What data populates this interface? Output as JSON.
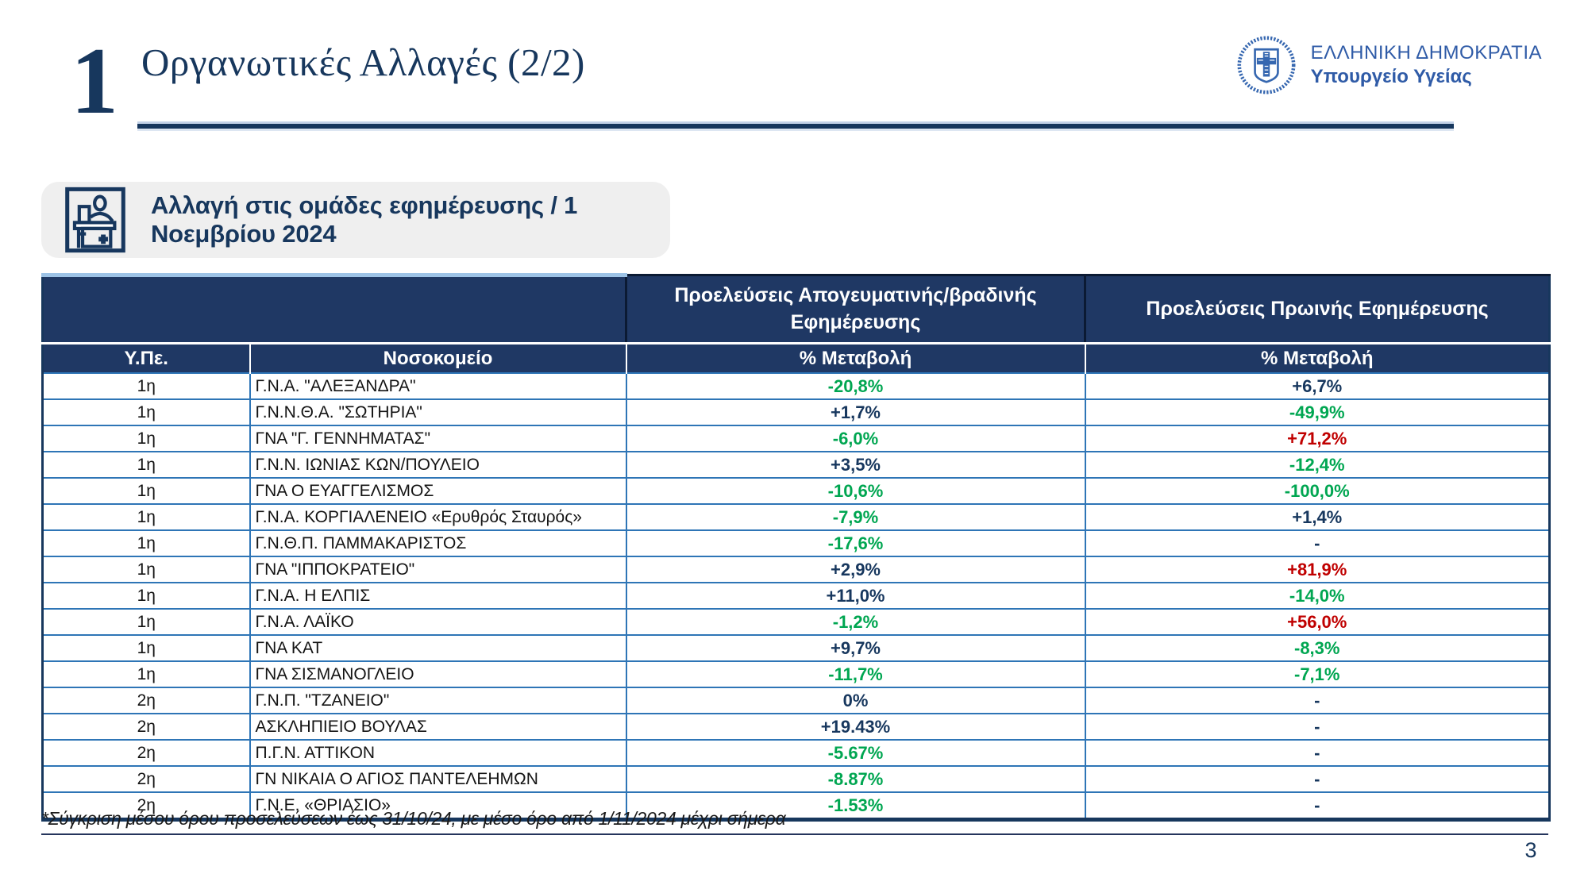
{
  "slide": {
    "section_number": "1",
    "title": "Οργανωτικές Αλλαγές (2/2)",
    "page_number": "3"
  },
  "logo": {
    "emblem": "greek-coat-of-arms",
    "line1": "ΕΛΛΗΝΙΚΗ ΔΗΜΟΚΡΑΤΙΑ",
    "line2": "Υπουργείο Υγείας"
  },
  "callout": {
    "icon": "hospital-reception-icon",
    "text": "Αλλαγή στις ομάδες εφημέρευσης / 1 Νοεμβρίου 2024"
  },
  "table": {
    "header_groups": {
      "afternoon": "Προελεύσεις  Απογευματινής/βραδινής Εφημέρευσης",
      "morning": "Προελεύσεις  Πρωινής Εφημέρευσης"
    },
    "columns": {
      "ype": "Υ.Πε.",
      "hospital": "Νοσοκομείο",
      "afternoon_change": "% Μεταβολή",
      "morning_change": "% Μεταβολή"
    },
    "rows": [
      {
        "ype": "1η",
        "hospital": "Γ.Ν.Α. \"ΑΛΕΞΑΝΔΡΑ\"",
        "afternoon": {
          "value": "-20,8%",
          "color": "green"
        },
        "morning": {
          "value": "+6,7%",
          "color": "navy"
        }
      },
      {
        "ype": "1η",
        "hospital": "Γ.Ν.Ν.Θ.Α. \"ΣΩΤΗΡΙΑ\"",
        "afternoon": {
          "value": "+1,7%",
          "color": "navy"
        },
        "morning": {
          "value": "-49,9%",
          "color": "green"
        }
      },
      {
        "ype": "1η",
        "hospital": "ΓΝΑ \"Γ. ΓΕΝΝΗΜΑΤΑΣ\"",
        "afternoon": {
          "value": "-6,0%",
          "color": "green"
        },
        "morning": {
          "value": "+71,2%",
          "color": "red"
        }
      },
      {
        "ype": "1η",
        "hospital": "Γ.Ν.Ν. ΙΩΝΙΑΣ ΚΩΝ/ΠΟΥΛΕΙΟ",
        "afternoon": {
          "value": "+3,5%",
          "color": "navy"
        },
        "morning": {
          "value": "-12,4%",
          "color": "green"
        }
      },
      {
        "ype": "1η",
        "hospital": "ΓΝΑ Ο ΕΥΑΓΓΕΛΙΣΜΟΣ",
        "afternoon": {
          "value": "-10,6%",
          "color": "green"
        },
        "morning": {
          "value": "-100,0%",
          "color": "green"
        }
      },
      {
        "ype": "1η",
        "hospital": "Γ.Ν.Α. ΚΟΡΓΙΑΛΕΝΕΙΟ «Ερυθρός Σταυρός»",
        "afternoon": {
          "value": "-7,9%",
          "color": "green"
        },
        "morning": {
          "value": "+1,4%",
          "color": "navy"
        }
      },
      {
        "ype": "1η",
        "hospital": "Γ.Ν.Θ.Π. ΠΑΜΜΑΚΑΡΙΣΤΟΣ",
        "afternoon": {
          "value": "-17,6%",
          "color": "green"
        },
        "morning": {
          "value": "-",
          "color": "navy"
        }
      },
      {
        "ype": "1η",
        "hospital": "ΓΝΑ \"ΙΠΠΟΚΡΑΤΕΙΟ\"",
        "afternoon": {
          "value": "+2,9%",
          "color": "navy"
        },
        "morning": {
          "value": "+81,9%",
          "color": "red"
        }
      },
      {
        "ype": "1η",
        "hospital": "Γ.Ν.Α. Η ΕΛΠΙΣ",
        "afternoon": {
          "value": "+11,0%",
          "color": "navy"
        },
        "morning": {
          "value": "-14,0%",
          "color": "green"
        }
      },
      {
        "ype": "1η",
        "hospital": "Γ.Ν.Α. ΛΑΪΚΟ",
        "afternoon": {
          "value": "-1,2%",
          "color": "green"
        },
        "morning": {
          "value": "+56,0%",
          "color": "red"
        }
      },
      {
        "ype": "1η",
        "hospital": "ΓΝΑ ΚΑΤ",
        "afternoon": {
          "value": "+9,7%",
          "color": "navy"
        },
        "morning": {
          "value": "-8,3%",
          "color": "green"
        }
      },
      {
        "ype": "1η",
        "hospital": "ΓΝΑ ΣΙΣΜΑΝΟΓΛΕΙΟ",
        "afternoon": {
          "value": "-11,7%",
          "color": "green"
        },
        "morning": {
          "value": "-7,1%",
          "color": "green"
        }
      },
      {
        "ype": "2η",
        "hospital": "Γ.Ν.Π. \"ΤΖΑΝΕΙΟ\"",
        "afternoon": {
          "value": "0%",
          "color": "navy"
        },
        "morning": {
          "value": "-",
          "color": "navy"
        }
      },
      {
        "ype": "2η",
        "hospital": "ΑΣΚΛΗΠΙΕΙΟ ΒΟΥΛΑΣ",
        "afternoon": {
          "value": "+19.43%",
          "color": "navy"
        },
        "morning": {
          "value": "-",
          "color": "navy"
        }
      },
      {
        "ype": "2η",
        "hospital": "Π.Γ.Ν. ΑΤΤΙΚΟΝ",
        "afternoon": {
          "value": "-5.67%",
          "color": "green"
        },
        "morning": {
          "value": "-",
          "color": "navy"
        }
      },
      {
        "ype": "2η",
        "hospital": "ΓΝ ΝΙΚΑΙΑ Ο ΑΓΙΟΣ ΠΑΝΤΕΛΕΗΜΩΝ",
        "afternoon": {
          "value": "-8.87%",
          "color": "green"
        },
        "morning": {
          "value": "-",
          "color": "navy"
        }
      },
      {
        "ype": "2η",
        "hospital": "Γ.Ν.Ε. «ΘΡΙΑΣΙΟ»",
        "afternoon": {
          "value": "-1.53%",
          "color": "green"
        },
        "morning": {
          "value": "-",
          "color": "navy"
        }
      }
    ]
  },
  "footnote": "*Σύγκριση μέσου όρου προσελεύσεων έως 31/10/24, με μέσο όρο από 1/11/2024 μέχρι σήμερα",
  "colors": {
    "navy": "#17375E",
    "header_bg": "#1F3864",
    "border_blue": "#2E75B6",
    "green": "#00A651",
    "red": "#C00000",
    "light_blue_accent": "#9DC3E6",
    "callout_bg": "#EFEFEF",
    "logo_blue": "#2F5BA7"
  }
}
